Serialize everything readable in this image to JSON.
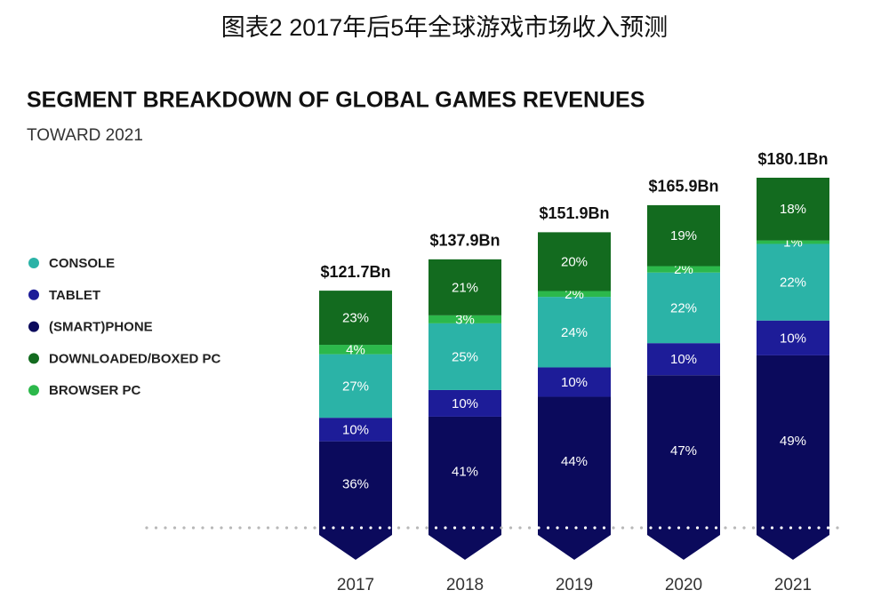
{
  "chart_data": {
    "type": "stacked-bar",
    "caption": "图表2 2017年后5年全球游戏市场收入预测",
    "title": "SEGMENT BREAKDOWN OF GLOBAL GAMES REVENUES",
    "subtitle": "TOWARD 2021",
    "categories": [
      "2017",
      "2018",
      "2019",
      "2020",
      "2021"
    ],
    "totals": {
      "values": [
        121.7,
        137.9,
        151.9,
        165.9,
        180.1
      ],
      "value_labels": [
        "$121.7Bn",
        "$137.9Bn",
        "$151.9Bn",
        "$165.9Bn",
        "$180.1Bn"
      ]
    },
    "series": [
      {
        "name": "CONSOLE",
        "color": "#2bb3a7",
        "values": [
          27,
          25,
          24,
          22,
          22
        ],
        "value_labels": [
          "27%",
          "25%",
          "24%",
          "22%",
          "22%"
        ]
      },
      {
        "name": "TABLET",
        "color": "#1d1c98",
        "values": [
          10,
          10,
          10,
          10,
          10
        ],
        "value_labels": [
          "10%",
          "10%",
          "10%",
          "10%",
          "10%"
        ]
      },
      {
        "name": "(SMART)PHONE",
        "color": "#0b0a5c",
        "values": [
          36,
          41,
          44,
          47,
          49
        ],
        "value_labels": [
          "36%",
          "41%",
          "44%",
          "47%",
          "49%"
        ]
      },
      {
        "name": "DOWNLOADED/BOXED PC",
        "color": "#136b1f",
        "values": [
          23,
          21,
          20,
          19,
          18
        ],
        "value_labels": [
          "23%",
          "21%",
          "20%",
          "19%",
          "18%"
        ]
      },
      {
        "name": "BROWSER PC",
        "color": "#2cb84b",
        "values": [
          4,
          3,
          2,
          2,
          1
        ],
        "value_labels": [
          "4%",
          "3%",
          "2%",
          "2%",
          "1%"
        ]
      }
    ],
    "legend": "left"
  }
}
